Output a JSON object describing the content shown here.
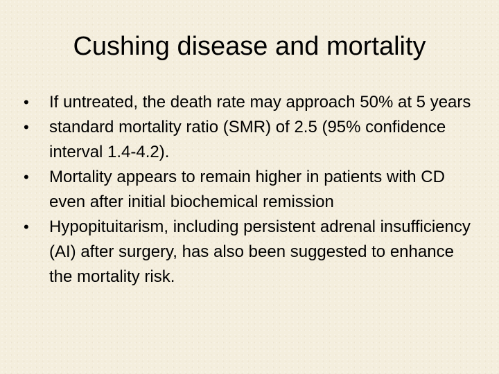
{
  "slide": {
    "title": "Cushing disease and mortality",
    "bullet_symbol": "•",
    "bullets": [
      "If untreated, the death rate may approach 50% at 5 years",
      "standard mortality ratio (SMR) of 2.5 (95% confidence interval 1.4-4.2).",
      "Mortality appears to remain higher in patients with CD even after initial biochemical remission",
      "Hypopituitarism, including persistent adrenal insufficiency (AI) after surgery, has also been suggested to enhance the mortality risk."
    ]
  }
}
